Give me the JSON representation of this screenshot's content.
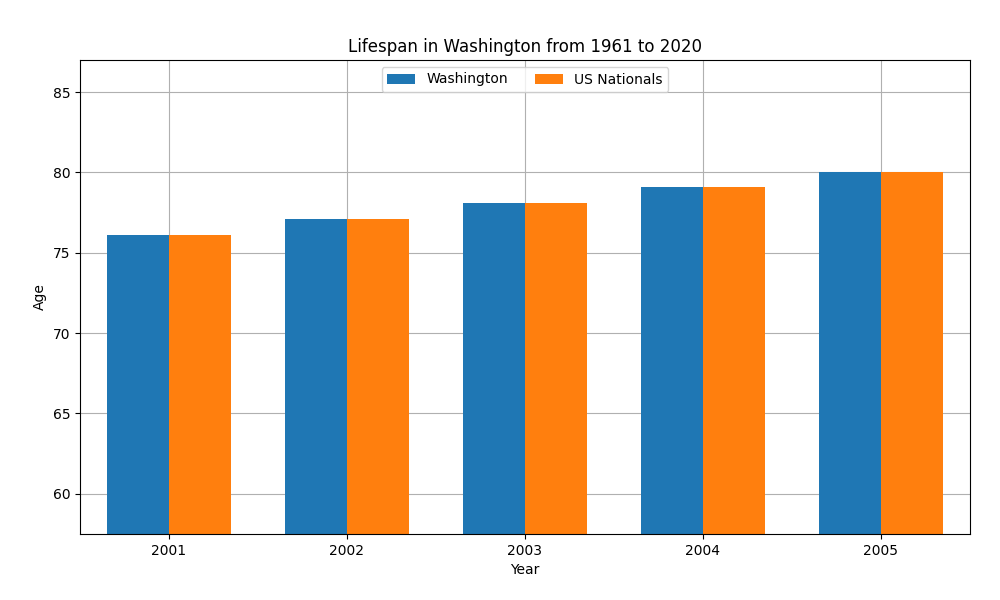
{
  "chart_data": {
    "type": "bar",
    "title": "Lifespan in Washington from 1961 to 2020",
    "x_label": "Year",
    "y_label": "Age",
    "categories": [
      "2001",
      "2002",
      "2003",
      "2004",
      "2005"
    ],
    "series": [
      {
        "name": "Washington",
        "values": [
          76.1,
          77.1,
          78.1,
          79.1,
          80.0
        ]
      },
      {
        "name": "US Nationals",
        "values": [
          76.1,
          77.1,
          78.1,
          79.1,
          80.0
        ]
      }
    ],
    "ylim": [
      57.5,
      87
    ],
    "yticks": [
      60,
      65,
      70,
      75,
      80,
      85
    ],
    "grid": true,
    "legend": "upper center"
  }
}
